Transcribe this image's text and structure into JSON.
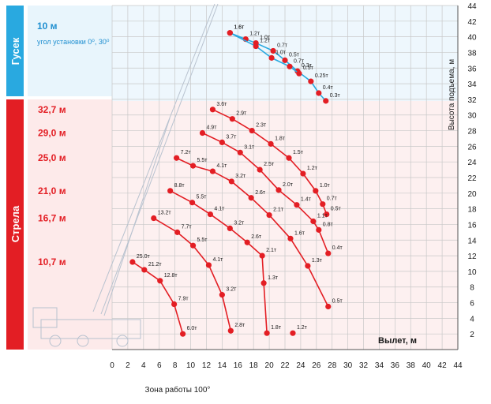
{
  "jib_panel": {
    "side_label": "Гусек",
    "length": "10 м",
    "note": "угол установки 0⁰, 30⁰"
  },
  "boom_panel": {
    "side_label": "Стрела",
    "lengths": [
      "32,7 м",
      "29,0 м",
      "25,0 м",
      "21,0 м",
      "16,7 м",
      "10,7 м"
    ]
  },
  "bottom_caption": "Зона работы 100°",
  "colors": {
    "jib_blue": "#29a9e0",
    "boom_red": "#e31e24",
    "jib_bg": "#e8f5fc",
    "boom_bg": "#fdeaea",
    "grid": "#c8c8c8"
  },
  "chart_data": {
    "type": "line",
    "xlabel": "Вылет, м",
    "ylabel": "Высота подъема, м",
    "xlim": [
      0,
      44
    ],
    "ylim": [
      0,
      44
    ],
    "x_ticks": [
      0,
      2,
      4,
      6,
      8,
      10,
      12,
      14,
      16,
      18,
      20,
      22,
      24,
      26,
      28,
      30,
      32,
      34,
      36,
      38,
      40,
      42,
      44
    ],
    "y_ticks": [
      2,
      4,
      6,
      8,
      10,
      12,
      14,
      16,
      18,
      20,
      22,
      24,
      26,
      28,
      30,
      32,
      34,
      36,
      38,
      40,
      42,
      44
    ],
    "grid": true,
    "series": [
      {
        "name": "10 м",
        "group": "jib",
        "points": [
          {
            "x": 15,
            "y": 40.5,
            "label": "1.6т"
          },
          {
            "x": 17,
            "y": 39.7,
            "label": "1.2т"
          },
          {
            "x": 18.3,
            "y": 39.2,
            "label": "1.0т"
          },
          {
            "x": 20.5,
            "y": 38.2,
            "label": "0.7т"
          },
          {
            "x": 22,
            "y": 37,
            "label": "0.5т"
          },
          {
            "x": 23.6,
            "y": 35.6,
            "label": "0.3т"
          },
          {
            "x": 25.3,
            "y": 34.3,
            "label": "0.25т"
          },
          {
            "x": 26.3,
            "y": 32.8,
            "label": "0.4т"
          },
          {
            "x": 27.2,
            "y": 31.8,
            "label": "0.3т"
          }
        ]
      },
      {
        "name": "10 м",
        "group": "jib",
        "points": [
          {
            "x": 15,
            "y": 40.5,
            "label": "1.6т"
          },
          {
            "x": 18.3,
            "y": 38.8,
            "label": "1.2т"
          },
          {
            "x": 20.3,
            "y": 37.3,
            "label": "1.0т"
          },
          {
            "x": 22.6,
            "y": 36.2,
            "label": "0.7т"
          },
          {
            "x": 23.8,
            "y": 35.3,
            "label": "0.5т"
          }
        ]
      },
      {
        "name": "32,7 м",
        "group": "boom",
        "points": [
          {
            "x": 12.8,
            "y": 30.7,
            "label": "3.6т"
          },
          {
            "x": 15.3,
            "y": 29.5,
            "label": "2.9т"
          },
          {
            "x": 17.8,
            "y": 28,
            "label": "2.3т"
          },
          {
            "x": 20.2,
            "y": 26.3,
            "label": "1.8т"
          },
          {
            "x": 22.5,
            "y": 24.5,
            "label": "1.5т"
          },
          {
            "x": 24.3,
            "y": 22.5,
            "label": "1.2т"
          },
          {
            "x": 25.9,
            "y": 20.3,
            "label": "1.0т"
          },
          {
            "x": 26.8,
            "y": 18.6,
            "label": "0.7т"
          },
          {
            "x": 27.3,
            "y": 17.3,
            "label": "0.5т"
          }
        ]
      },
      {
        "name": "29,0 м",
        "group": "boom",
        "points": [
          {
            "x": 11.5,
            "y": 27.7,
            "label": "4.9т"
          },
          {
            "x": 14,
            "y": 26.5,
            "label": "3.7т"
          },
          {
            "x": 16.3,
            "y": 25.2,
            "label": "3.1т"
          },
          {
            "x": 18.8,
            "y": 23,
            "label": "2.5т"
          },
          {
            "x": 21.2,
            "y": 20.4,
            "label": "2.0т"
          },
          {
            "x": 23.5,
            "y": 18.5,
            "label": "1.4т"
          },
          {
            "x": 25.6,
            "y": 16.4,
            "label": "1.1т"
          },
          {
            "x": 26.3,
            "y": 15.3,
            "label": "0.8т"
          },
          {
            "x": 27.5,
            "y": 12.3,
            "label": "0.4т"
          }
        ]
      },
      {
        "name": "25,0 м",
        "group": "boom",
        "points": [
          {
            "x": 8.2,
            "y": 24.5,
            "label": "7.2т"
          },
          {
            "x": 10.3,
            "y": 23.5,
            "label": "5.5т"
          },
          {
            "x": 12.8,
            "y": 22.8,
            "label": "4.1т"
          },
          {
            "x": 15.2,
            "y": 21.5,
            "label": "3.2т"
          },
          {
            "x": 17.7,
            "y": 19.4,
            "label": "2.6т"
          },
          {
            "x": 20,
            "y": 17.2,
            "label": "2.1т"
          },
          {
            "x": 22.7,
            "y": 14.2,
            "label": "1.6т"
          },
          {
            "x": 24.9,
            "y": 10.7,
            "label": "1.3т"
          },
          {
            "x": 27.5,
            "y": 5.5,
            "label": "0.5т"
          }
        ]
      },
      {
        "name": "21,0 м",
        "group": "boom",
        "points": [
          {
            "x": 7.4,
            "y": 20.3,
            "label": "8.8т"
          },
          {
            "x": 10.2,
            "y": 18.8,
            "label": "5.5т"
          },
          {
            "x": 12.5,
            "y": 17.3,
            "label": "4.1т"
          },
          {
            "x": 15,
            "y": 15.5,
            "label": "3.2т"
          },
          {
            "x": 17.2,
            "y": 13.7,
            "label": "2.6т"
          },
          {
            "x": 19.1,
            "y": 12,
            "label": "2.1т"
          },
          {
            "x": 19.3,
            "y": 8.5,
            "label": "1.3т"
          },
          {
            "x": 19.7,
            "y": 2.1,
            "label": "1.8т"
          }
        ]
      },
      {
        "name": "16,7 м",
        "group": "boom",
        "points": [
          {
            "x": 5.3,
            "y": 16.8,
            "label": "13.2т"
          },
          {
            "x": 8.3,
            "y": 15,
            "label": "7.7т"
          },
          {
            "x": 10.3,
            "y": 13.3,
            "label": "5.5т"
          },
          {
            "x": 12.3,
            "y": 10.8,
            "label": "4.1т"
          },
          {
            "x": 14,
            "y": 7,
            "label": "3.2т"
          },
          {
            "x": 15.1,
            "y": 2.4,
            "label": "2.8т"
          }
        ]
      },
      {
        "name": "10,7 м",
        "group": "boom",
        "points": [
          {
            "x": 2.6,
            "y": 11.2,
            "label": "25.0т"
          },
          {
            "x": 4.1,
            "y": 10.2,
            "label": "21.2т"
          },
          {
            "x": 6.1,
            "y": 8.8,
            "label": "12.8т"
          },
          {
            "x": 7.9,
            "y": 5.8,
            "label": "7.9т"
          },
          {
            "x": 9,
            "y": 2,
            "label": "6.0т"
          }
        ]
      }
    ],
    "extra_labels": [
      {
        "x": 23,
        "y": 2.1,
        "label": "1.2т"
      }
    ]
  }
}
